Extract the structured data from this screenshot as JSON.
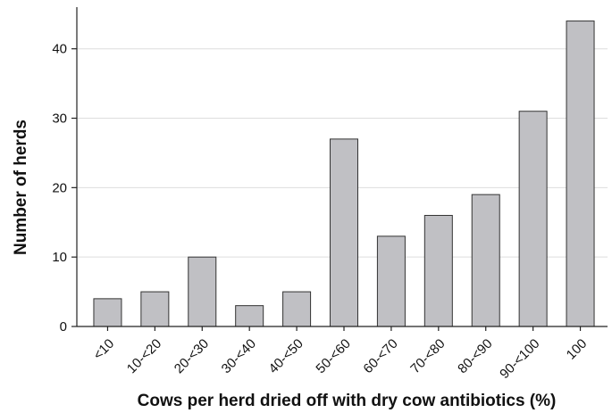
{
  "chart_data": {
    "type": "bar",
    "title": "",
    "xlabel": "Cows per herd dried off with dry cow antibiotics (%)",
    "ylabel": "Number of herds",
    "categories": [
      "<10",
      "10-<20",
      "20-<30",
      "30-<40",
      "40-<50",
      "50-<60",
      "60-<70",
      "70-<80",
      "80-<90",
      "90-<100",
      "100"
    ],
    "values": [
      4,
      5,
      10,
      3,
      5,
      27,
      13,
      16,
      19,
      31,
      44
    ],
    "ylim": [
      0,
      46
    ],
    "yticks": [
      0,
      10,
      20,
      30,
      40
    ],
    "grid": true,
    "bar_color": "#c0c0c4",
    "bar_edge_color": "#333333",
    "grid_color": "#dddddd"
  }
}
